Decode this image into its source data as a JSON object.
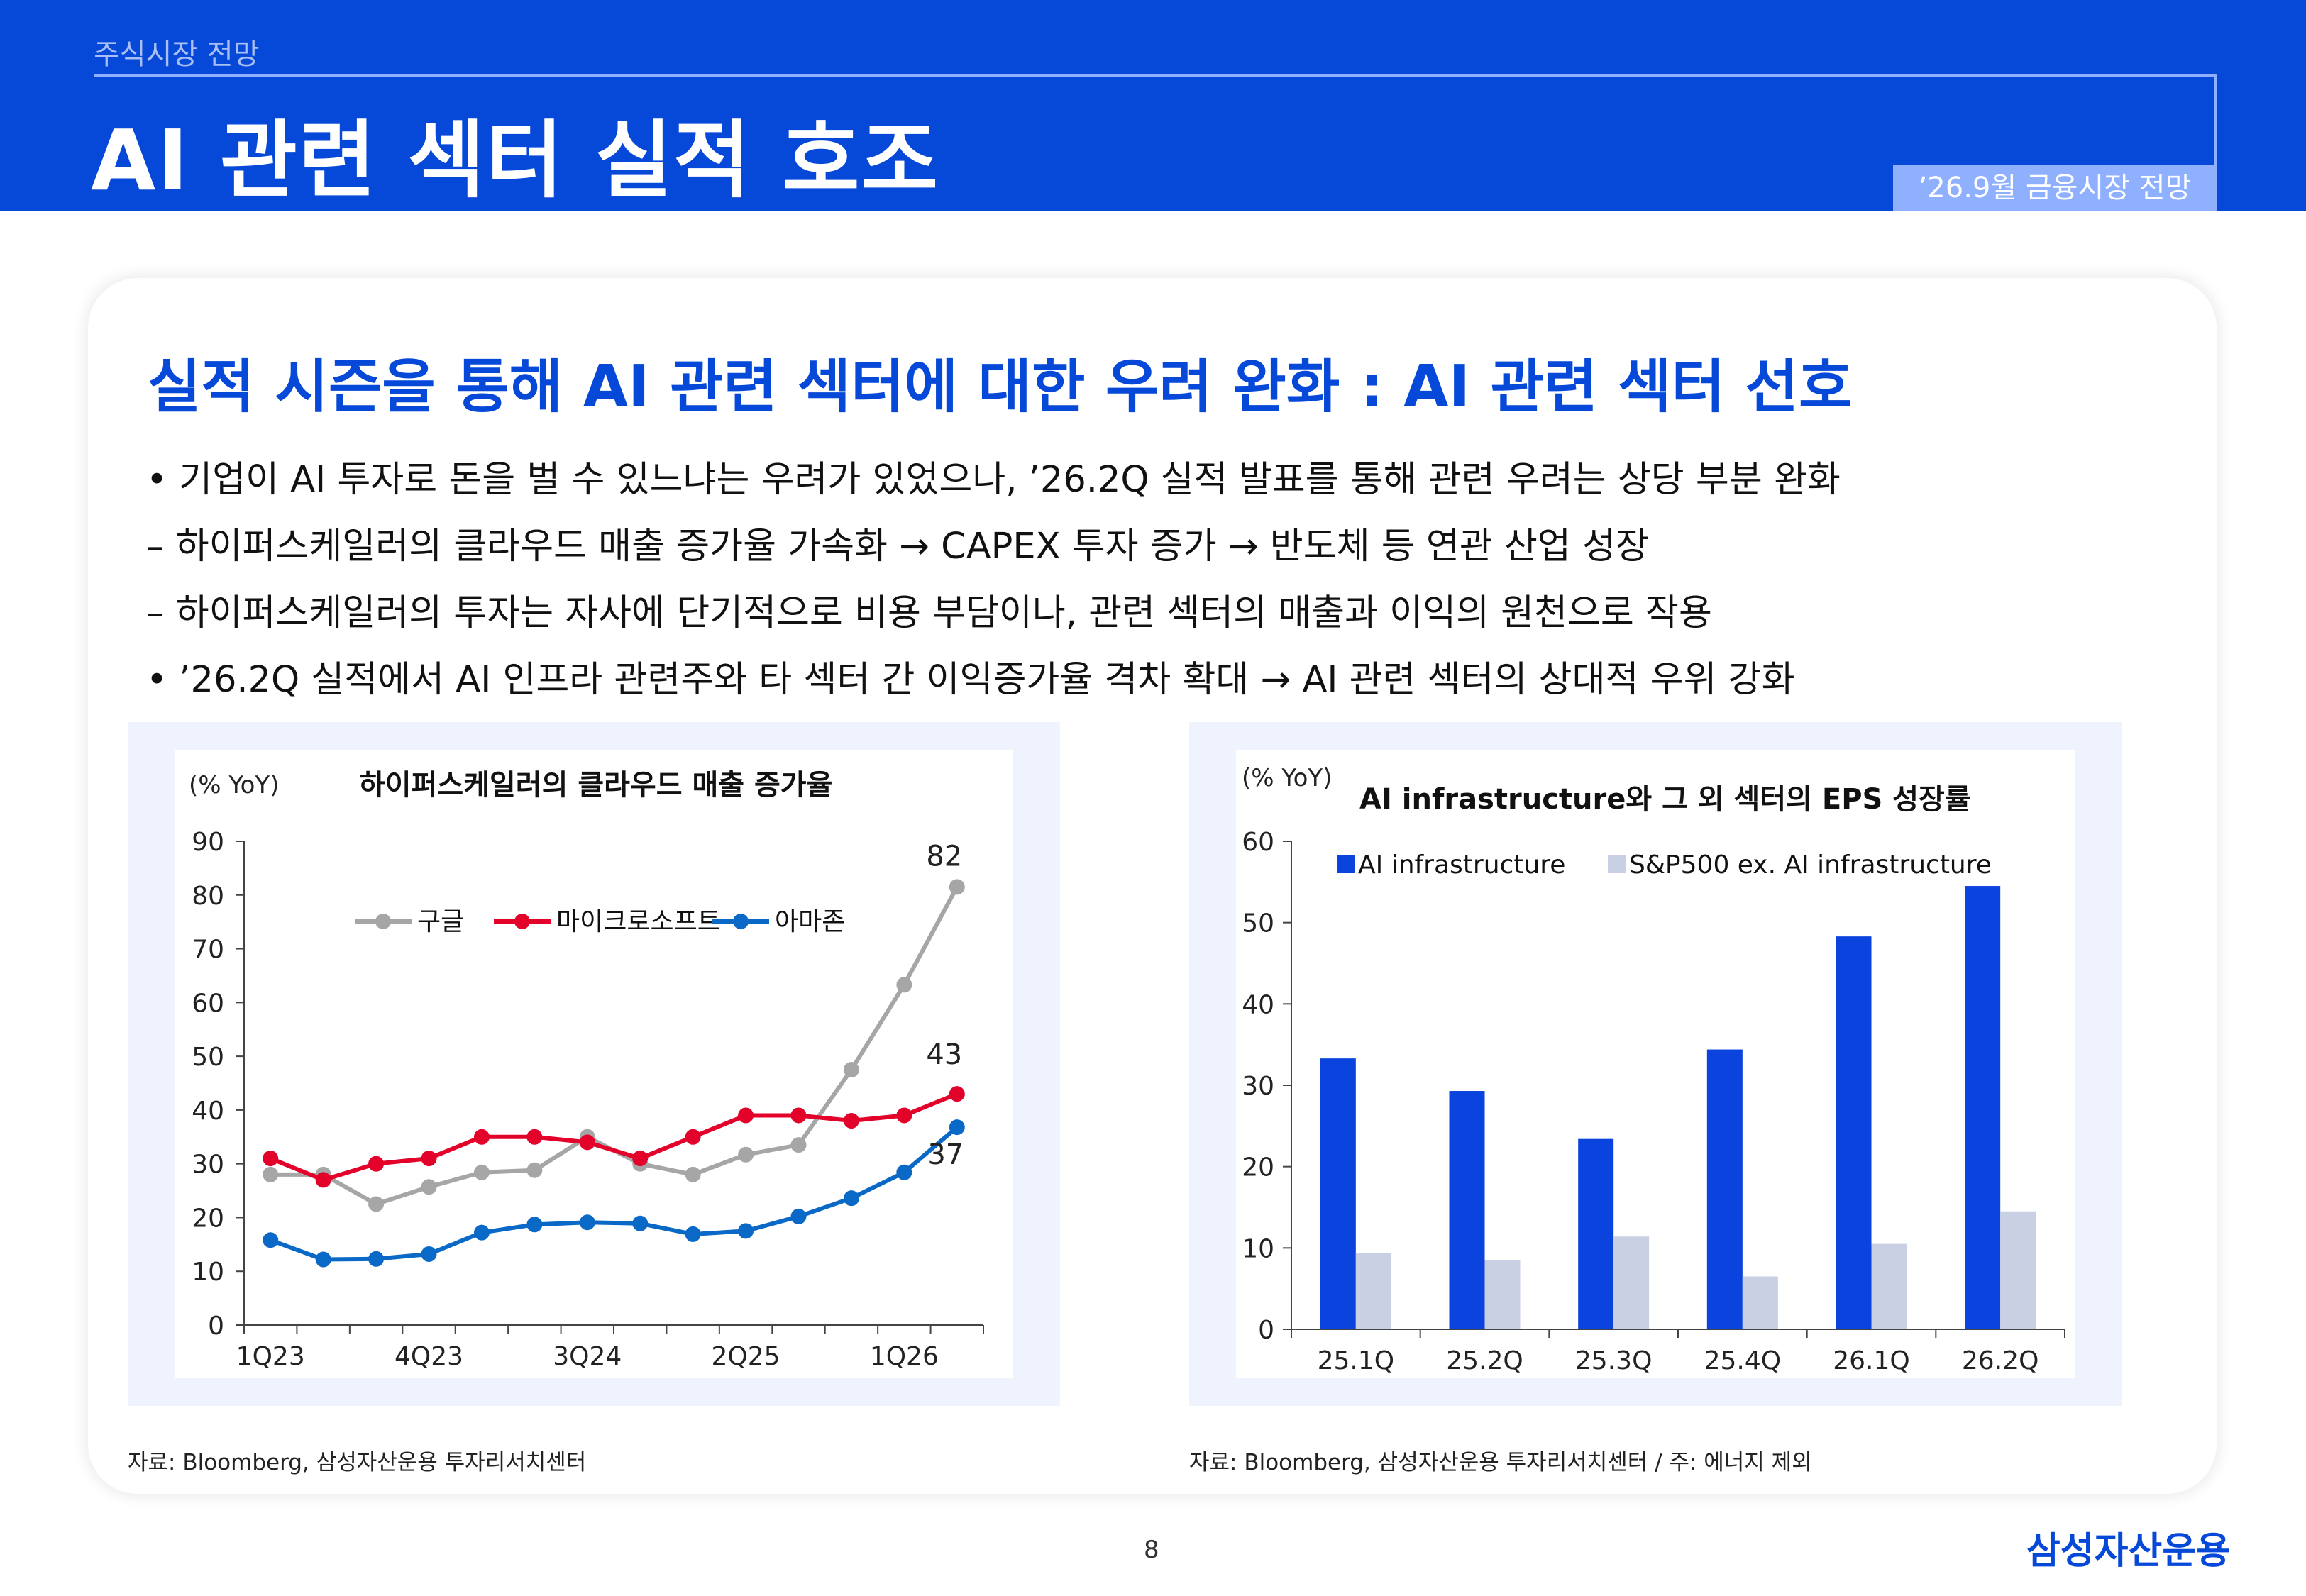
{
  "header": {
    "section": "주식시장 전망",
    "title": "AI 관련 섹터 실적 호조",
    "badge": "’26.9월 금융시장 전망"
  },
  "main": {
    "headline": "실적 시즌을 통해 AI 관련 섹터에 대한 우려 완화 : AI 관련 섹터 선호",
    "bullets": [
      "• 기업이 AI 투자로 돈을 벌 수 있느냐는 우려가 있었으나, ’26.2Q 실적 발표를 통해 관련 우려는 상당 부분 완화",
      " – 하이퍼스케일러의 클라우드 매출 증가율 가속화 → CAPEX 투자 증가 → 반도체 등 연관 산업 성장",
      " – 하이퍼스케일러의 투자는 자사에 단기적으로 비용 부담이나, 관련 섹터의 매출과 이익의 원천으로 작용",
      "• ’26.2Q 실적에서 AI 인프라 관련주와 타 섹터 간 이익증가율 격차 확대 → AI 관련 섹터의 상대적 우위 강화"
    ]
  },
  "chart_data": [
    {
      "type": "line",
      "title": "하이퍼스케일러의 클라우드 매출 증가율",
      "ylabel": "(% YoY)",
      "ylim": [
        0,
        90
      ],
      "yticks": [
        "0",
        "10",
        "20",
        "30",
        "40",
        "50",
        "60",
        "70",
        "80",
        "90"
      ],
      "x": [
        "1Q23",
        "2Q23",
        "3Q23",
        "4Q23",
        "1Q24",
        "2Q24",
        "3Q24",
        "4Q24",
        "1Q25",
        "2Q25",
        "3Q25",
        "4Q25",
        "1Q26",
        "2Q26"
      ],
      "xtick_labels": [
        "1Q23",
        "4Q23",
        "3Q24",
        "2Q25",
        "1Q26"
      ],
      "legend_position": "top-left",
      "series": [
        {
          "name": "구글",
          "color": "#a6a6a6",
          "values": [
            28,
            28,
            22.5,
            25.7,
            28.4,
            28.8,
            35,
            30,
            28,
            31.7,
            33.5,
            47.5,
            63.3,
            81.5
          ]
        },
        {
          "name": "마이크로소프트",
          "color": "#e3022a",
          "values": [
            31,
            27,
            30,
            31,
            35,
            35,
            34,
            31,
            35,
            39,
            39,
            38,
            39,
            43
          ]
        },
        {
          "name": "아마존",
          "color": "#0a68c6",
          "values": [
            15.8,
            12.2,
            12.3,
            13.2,
            17.2,
            18.7,
            19.1,
            18.9,
            16.9,
            17.5,
            20.2,
            23.6,
            28.4,
            36.8
          ]
        }
      ],
      "data_labels": [
        {
          "series": "구글",
          "text": "82"
        },
        {
          "series": "마이크로소프트",
          "text": "43"
        },
        {
          "series": "아마존",
          "text": "37"
        }
      ],
      "grid": false
    },
    {
      "type": "bar",
      "title": "AI infrastructure와 그 외 섹터의 EPS 성장률",
      "ylabel": "(% YoY)",
      "ylim": [
        0,
        60
      ],
      "yticks": [
        "0",
        "10",
        "20",
        "30",
        "40",
        "50",
        "60"
      ],
      "categories": [
        "25.1Q",
        "25.2Q",
        "25.3Q",
        "25.4Q",
        "26.1Q",
        "26.2Q"
      ],
      "legend_position": "top-left",
      "series": [
        {
          "name": "AI infrastructure",
          "color": "#0a43dd",
          "values": [
            33.3,
            29.3,
            23.4,
            34.4,
            48.3,
            54.5
          ]
        },
        {
          "name": "S&P500 ex. AI infrastructure",
          "color": "#c9d0e4",
          "values": [
            9.4,
            8.5,
            11.4,
            6.5,
            10.5,
            14.5
          ]
        }
      ],
      "grid": false
    }
  ],
  "sources": {
    "left": "자료: Bloomberg, 삼성자산운용 투자리서치센터",
    "right": "자료: Bloomberg, 삼성자산운용 투자리서치센터 / 주: 에너지 제외"
  },
  "footer": {
    "page": "8",
    "logo": "삼성자산운용"
  }
}
